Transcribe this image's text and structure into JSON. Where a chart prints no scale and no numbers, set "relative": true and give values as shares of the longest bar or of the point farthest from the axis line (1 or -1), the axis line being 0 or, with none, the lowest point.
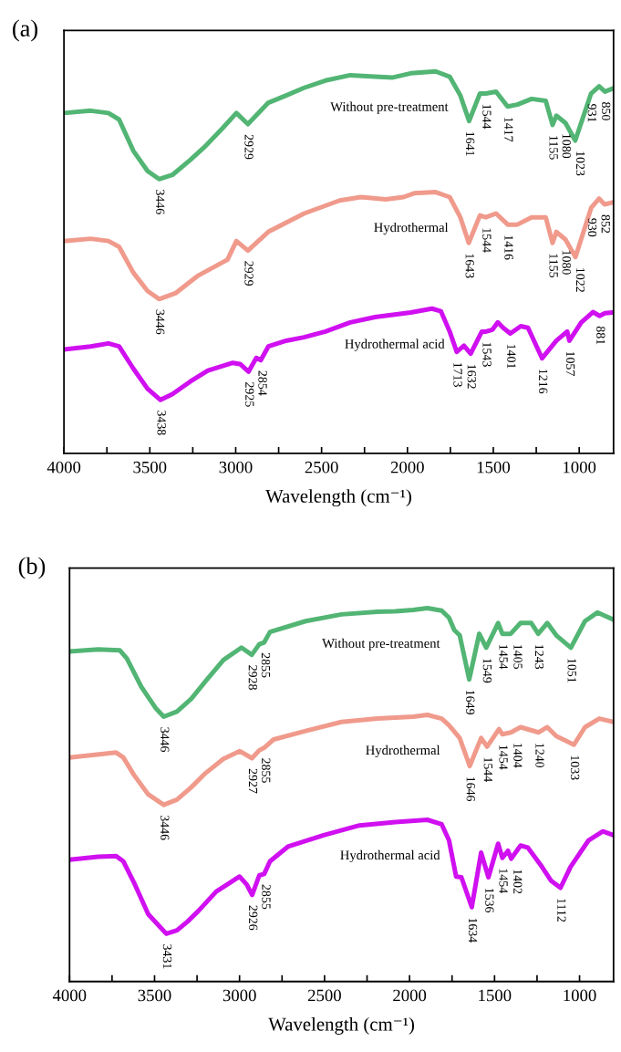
{
  "chart_data": [
    {
      "type": "line",
      "title": "(a)",
      "xlabel": "Wavelength (cm⁻¹)",
      "relative": true,
      "xlim": [
        4000,
        800
      ],
      "xticks": [
        4000,
        {
          "value": 3750,
          "label": null
        },
        3500,
        {
          "value": 3250,
          "label": null
        },
        3000,
        {
          "value": 2750,
          "label": null
        },
        2500,
        {
          "value": 2250,
          "label": null
        },
        2000,
        {
          "value": 1750,
          "label": null
        },
        1500,
        {
          "value": 1250,
          "label": null
        },
        1000
      ],
      "grid": false,
      "legend": false,
      "marker": "none",
      "line_style": "solid",
      "series": [
        {
          "name": "Without pre-treatment",
          "color": "#52b574",
          "x": [
            4000,
            3845,
            3741,
            3679,
            3596,
            3513,
            3446,
            3369,
            3265,
            3182,
            3079,
            2996,
            2929,
            2872,
            2810,
            2706,
            2602,
            2478,
            2333,
            2188,
            2085,
            1981,
            1836,
            1754,
            1692,
            1641,
            1578,
            1544,
            1484,
            1417,
            1360,
            1277,
            1195,
            1155,
            1133,
            1080,
            1023,
            931,
            884,
            850,
            806
          ],
          "values": [
            0.891,
            0.897,
            0.891,
            0.874,
            0.792,
            0.739,
            0.718,
            0.729,
            0.768,
            0.802,
            0.85,
            0.891,
            0.862,
            0.889,
            0.918,
            0.937,
            0.957,
            0.976,
            0.99,
            0.986,
            0.984,
            0.995,
            1,
            0.986,
            0.937,
            0.87,
            0.942,
            0.942,
            0.947,
            0.908,
            0.913,
            0.928,
            0.923,
            0.86,
            0.884,
            0.865,
            0.819,
            0.942,
            0.961,
            0.947,
            0.955
          ]
        },
        {
          "name": "Hydrothermal",
          "color": "#f09a8c",
          "x": [
            4000,
            3845,
            3741,
            3679,
            3596,
            3513,
            3446,
            3348,
            3224,
            3048,
            2996,
            2929,
            2810,
            2602,
            2395,
            2271,
            2126,
            2023,
            1961,
            1836,
            1754,
            1692,
            1643,
            1578,
            1544,
            1484,
            1416,
            1360,
            1277,
            1195,
            1155,
            1133,
            1080,
            1022,
            930,
            884,
            852,
            806
          ],
          "values": [
            0.556,
            0.562,
            0.556,
            0.541,
            0.473,
            0.425,
            0.404,
            0.42,
            0.464,
            0.507,
            0.556,
            0.531,
            0.58,
            0.628,
            0.662,
            0.671,
            0.665,
            0.671,
            0.681,
            0.684,
            0.671,
            0.618,
            0.551,
            0.623,
            0.618,
            0.628,
            0.599,
            0.599,
            0.618,
            0.618,
            0.551,
            0.58,
            0.56,
            0.514,
            0.643,
            0.667,
            0.652,
            0.657
          ]
        },
        {
          "name": "Hydrothermal acid",
          "color": "#d010f0",
          "x": [
            4000,
            3845,
            3741,
            3679,
            3596,
            3513,
            3438,
            3369,
            3265,
            3162,
            3017,
            2975,
            2925,
            2880,
            2854,
            2810,
            2706,
            2602,
            2478,
            2333,
            2188,
            1981,
            1857,
            1805,
            1754,
            1713,
            1671,
            1632,
            1567,
            1543,
            1505,
            1474,
            1443,
            1401,
            1340,
            1298,
            1216,
            1133,
            1070,
            1057,
            988,
            920,
            881,
            850,
            806
          ],
          "values": [
            0.272,
            0.28,
            0.288,
            0.28,
            0.222,
            0.169,
            0.14,
            0.155,
            0.188,
            0.217,
            0.237,
            0.234,
            0.214,
            0.25,
            0.244,
            0.28,
            0.295,
            0.304,
            0.319,
            0.343,
            0.357,
            0.369,
            0.379,
            0.372,
            0.319,
            0.266,
            0.282,
            0.261,
            0.319,
            0.319,
            0.324,
            0.343,
            0.329,
            0.314,
            0.333,
            0.329,
            0.249,
            0.295,
            0.319,
            0.295,
            0.343,
            0.37,
            0.36,
            0.367,
            0.369
          ]
        }
      ],
      "annotations": [
        {
          "text": "3446",
          "x": 3446,
          "y": 0.718
        },
        {
          "text": "2929",
          "x": 2929,
          "y": 0.862
        },
        {
          "text": "1641",
          "x": 1641,
          "y": 0.87
        },
        {
          "text": "1544",
          "x": 1544,
          "y": 0.942
        },
        {
          "text": "1417",
          "x": 1417,
          "y": 0.908
        },
        {
          "text": "1155",
          "x": 1155,
          "y": 0.86
        },
        {
          "text": "1080",
          "x": 1080,
          "y": 0.865
        },
        {
          "text": "1023",
          "x": 1023,
          "y": 0.819
        },
        {
          "text": "931",
          "x": 931,
          "y": 0.942
        },
        {
          "text": "850",
          "x": 850,
          "y": 0.947
        },
        {
          "text": "3446",
          "x": 3446,
          "y": 0.404
        },
        {
          "text": "2929",
          "x": 2929,
          "y": 0.531
        },
        {
          "text": "1643",
          "x": 1643,
          "y": 0.551
        },
        {
          "text": "1544",
          "x": 1544,
          "y": 0.618
        },
        {
          "text": "1416",
          "x": 1416,
          "y": 0.599
        },
        {
          "text": "1155",
          "x": 1155,
          "y": 0.551
        },
        {
          "text": "1080",
          "x": 1080,
          "y": 0.56
        },
        {
          "text": "1022",
          "x": 1022,
          "y": 0.514
        },
        {
          "text": "930",
          "x": 930,
          "y": 0.643
        },
        {
          "text": "852",
          "x": 852,
          "y": 0.652
        },
        {
          "text": "3438",
          "x": 3438,
          "y": 0.14
        },
        {
          "text": "2925",
          "x": 2925,
          "y": 0.214
        },
        {
          "text": "2854",
          "x": 2854,
          "y": 0.244
        },
        {
          "text": "1713",
          "x": 1713,
          "y": 0.266
        },
        {
          "text": "1632",
          "x": 1632,
          "y": 0.261
        },
        {
          "text": "1543",
          "x": 1543,
          "y": 0.319
        },
        {
          "text": "1401",
          "x": 1401,
          "y": 0.314
        },
        {
          "text": "1216",
          "x": 1216,
          "y": 0.249
        },
        {
          "text": "1057",
          "x": 1057,
          "y": 0.295
        },
        {
          "text": "881",
          "x": 881,
          "y": 0.36
        }
      ]
    },
    {
      "type": "line",
      "title": "(b)",
      "xlabel": "Wavelength (cm⁻¹)",
      "relative": true,
      "xlim": [
        4000,
        800
      ],
      "xticks": [
        4000,
        {
          "value": 3750,
          "label": null
        },
        3500,
        {
          "value": 3250,
          "label": null
        },
        3000,
        {
          "value": 2750,
          "label": null
        },
        2500,
        {
          "value": 2250,
          "label": null
        },
        2000,
        {
          "value": 1750,
          "label": null
        },
        1500,
        {
          "value": 1250,
          "label": null
        },
        1000
      ],
      "grid": false,
      "legend": false,
      "marker": "none",
      "line_style": "solid",
      "series": [
        {
          "name": "Without pre-treatment",
          "color": "#52b574",
          "x": [
            4000,
            3832,
            3705,
            3663,
            3579,
            3495,
            3446,
            3368,
            3284,
            3200,
            3095,
            2989,
            2928,
            2884,
            2855,
            2821,
            2611,
            2400,
            2189,
            2084,
            1979,
            1895,
            1811,
            1768,
            1737,
            1705,
            1649,
            1590,
            1549,
            1479,
            1454,
            1405,
            1347,
            1284,
            1243,
            1190,
            1137,
            1051,
            968,
            895,
            800
          ],
          "values": [
            0.884,
            0.889,
            0.887,
            0.865,
            0.79,
            0.733,
            0.709,
            0.723,
            0.757,
            0.804,
            0.861,
            0.894,
            0.875,
            0.903,
            0.908,
            0.936,
            0.965,
            0.983,
            0.99,
            0.991,
            0.995,
            1,
            0.993,
            0.974,
            0.941,
            0.927,
            0.809,
            0.931,
            0.894,
            0.96,
            0.931,
            0.931,
            0.96,
            0.96,
            0.931,
            0.96,
            0.927,
            0.894,
            0.965,
            0.988,
            0.969
          ]
        },
        {
          "name": "Hydrothermal",
          "color": "#f09a8c",
          "x": [
            4000,
            3726,
            3684,
            3621,
            3537,
            3446,
            3368,
            3284,
            3200,
            3095,
            3000,
            2927,
            2884,
            2855,
            2800,
            2611,
            2400,
            2189,
            1979,
            1895,
            1811,
            1768,
            1705,
            1646,
            1579,
            1544,
            1474,
            1454,
            1404,
            1347,
            1240,
            1190,
            1137,
            1033,
            968,
            884,
            800
          ],
          "values": [
            0.6,
            0.613,
            0.6,
            0.553,
            0.501,
            0.473,
            0.487,
            0.52,
            0.558,
            0.596,
            0.617,
            0.598,
            0.619,
            0.626,
            0.648,
            0.671,
            0.695,
            0.704,
            0.709,
            0.714,
            0.704,
            0.686,
            0.652,
            0.577,
            0.652,
            0.629,
            0.676,
            0.662,
            0.667,
            0.681,
            0.667,
            0.681,
            0.657,
            0.634,
            0.681,
            0.704,
            0.695
          ]
        },
        {
          "name": "Hydrothermal acid",
          "color": "#d010f0",
          "x": [
            4000,
            3832,
            3726,
            3684,
            3621,
            3537,
            3431,
            3368,
            3305,
            3242,
            3137,
            3000,
            2958,
            2926,
            2884,
            2855,
            2821,
            2716,
            2505,
            2295,
            2084,
            1895,
            1811,
            1768,
            1726,
            1695,
            1634,
            1579,
            1536,
            1479,
            1454,
            1421,
            1402,
            1347,
            1305,
            1221,
            1168,
            1112,
            1053,
            947,
            863,
            800
          ],
          "values": [
            0.326,
            0.334,
            0.336,
            0.322,
            0.265,
            0.18,
            0.128,
            0.137,
            0.161,
            0.189,
            0.241,
            0.281,
            0.26,
            0.232,
            0.284,
            0.288,
            0.322,
            0.361,
            0.392,
            0.418,
            0.427,
            0.433,
            0.421,
            0.378,
            0.281,
            0.279,
            0.199,
            0.345,
            0.279,
            0.369,
            0.331,
            0.35,
            0.329,
            0.364,
            0.359,
            0.307,
            0.27,
            0.251,
            0.307,
            0.378,
            0.402,
            0.392
          ]
        }
      ],
      "annotations": [
        {
          "text": "3446",
          "x": 3446,
          "y": 0.709
        },
        {
          "text": "2928",
          "x": 2928,
          "y": 0.875
        },
        {
          "text": "2855",
          "x": 2855,
          "y": 0.908
        },
        {
          "text": "1649",
          "x": 1649,
          "y": 0.809
        },
        {
          "text": "1549",
          "x": 1549,
          "y": 0.894
        },
        {
          "text": "1454",
          "x": 1454,
          "y": 0.931
        },
        {
          "text": "1405",
          "x": 1405,
          "y": 0.931
        },
        {
          "text": "1243",
          "x": 1243,
          "y": 0.931
        },
        {
          "text": "1051",
          "x": 1051,
          "y": 0.894
        },
        {
          "text": "3446",
          "x": 3446,
          "y": 0.473
        },
        {
          "text": "2927",
          "x": 2927,
          "y": 0.598
        },
        {
          "text": "2855",
          "x": 2855,
          "y": 0.626
        },
        {
          "text": "1646",
          "x": 1646,
          "y": 0.577
        },
        {
          "text": "1544",
          "x": 1544,
          "y": 0.629
        },
        {
          "text": "1454",
          "x": 1454,
          "y": 0.662
        },
        {
          "text": "1404",
          "x": 1404,
          "y": 0.667
        },
        {
          "text": "1240",
          "x": 1240,
          "y": 0.667
        },
        {
          "text": "1033",
          "x": 1033,
          "y": 0.634
        },
        {
          "text": "3431",
          "x": 3431,
          "y": 0.128
        },
        {
          "text": "2926",
          "x": 2926,
          "y": 0.232
        },
        {
          "text": "2855",
          "x": 2855,
          "y": 0.288
        },
        {
          "text": "1634",
          "x": 1634,
          "y": 0.199
        },
        {
          "text": "1536",
          "x": 1536,
          "y": 0.279
        },
        {
          "text": "1454",
          "x": 1454,
          "y": 0.331
        },
        {
          "text": "1402",
          "x": 1402,
          "y": 0.329
        },
        {
          "text": "1112",
          "x": 1112,
          "y": 0.251
        }
      ]
    }
  ]
}
